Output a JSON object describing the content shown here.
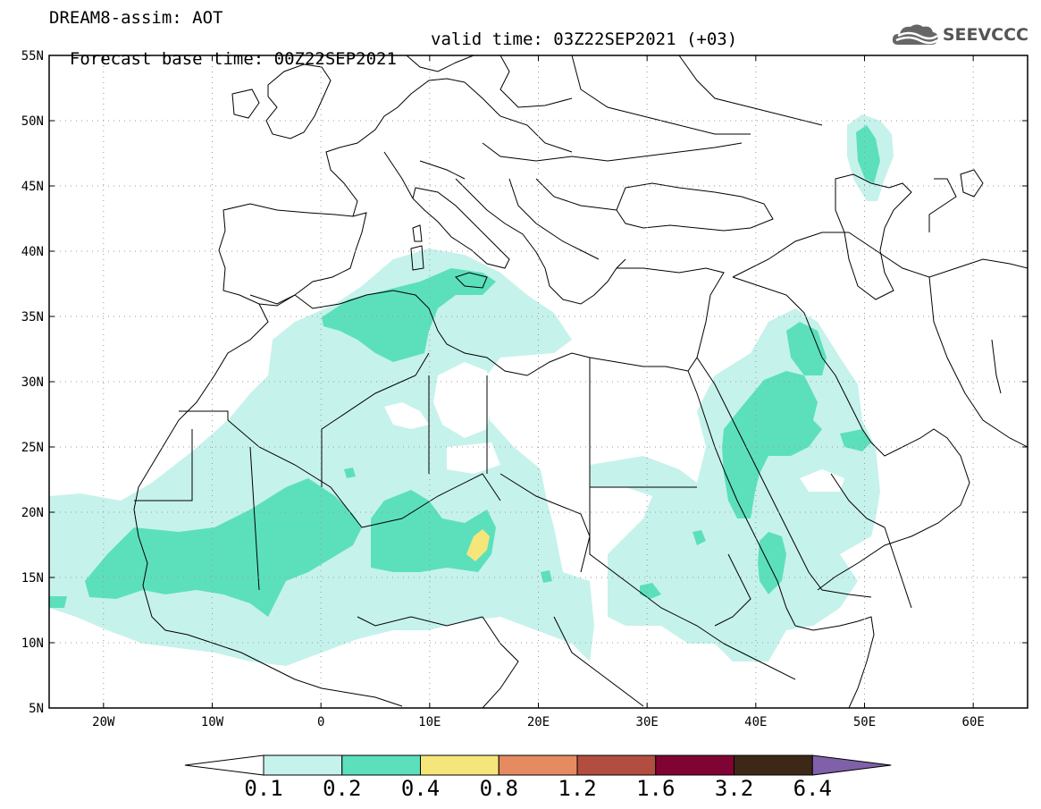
{
  "header": {
    "title_line": "DREAM8-assim: AOT",
    "base_time": "Forecast base time: 00Z22SEP2021",
    "valid_time": "valid time: 03Z22SEP2021 (+03)"
  },
  "logo": {
    "text": "SEEVCCC",
    "icon": "cloud-logo-icon"
  },
  "map": {
    "lon_range": [
      -25,
      65
    ],
    "lat_range": [
      5,
      55
    ],
    "lat_ticks": [
      {
        "value": 55,
        "label": "55N"
      },
      {
        "value": 50,
        "label": "50N"
      },
      {
        "value": 45,
        "label": "45N"
      },
      {
        "value": 40,
        "label": "40N"
      },
      {
        "value": 35,
        "label": "35N"
      },
      {
        "value": 30,
        "label": "30N"
      },
      {
        "value": 25,
        "label": "25N"
      },
      {
        "value": 20,
        "label": "20N"
      },
      {
        "value": 15,
        "label": "15N"
      },
      {
        "value": 10,
        "label": "10N"
      },
      {
        "value": 5,
        "label": "5N"
      }
    ],
    "lon_ticks": [
      {
        "value": -20,
        "label": "20W"
      },
      {
        "value": -10,
        "label": "10W"
      },
      {
        "value": 0,
        "label": "0"
      },
      {
        "value": 10,
        "label": "10E"
      },
      {
        "value": 20,
        "label": "20E"
      },
      {
        "value": 30,
        "label": "30E"
      },
      {
        "value": 40,
        "label": "40E"
      },
      {
        "value": 50,
        "label": "50E"
      },
      {
        "value": 60,
        "label": "60E"
      }
    ],
    "grid": "dotted"
  },
  "colorbar": {
    "levels": [
      "0.1",
      "0.2",
      "0.4",
      "0.8",
      "1.2",
      "1.6",
      "3.2",
      "6.4"
    ],
    "colors": [
      "#c6f2ec",
      "#5ce0bc",
      "#f5e67a",
      "#e68a61",
      "#b24e3f",
      "#7f0434",
      "#3d2817",
      "#8060a8"
    ],
    "under_color": "#ffffff",
    "over_color": "#8060a8"
  }
}
